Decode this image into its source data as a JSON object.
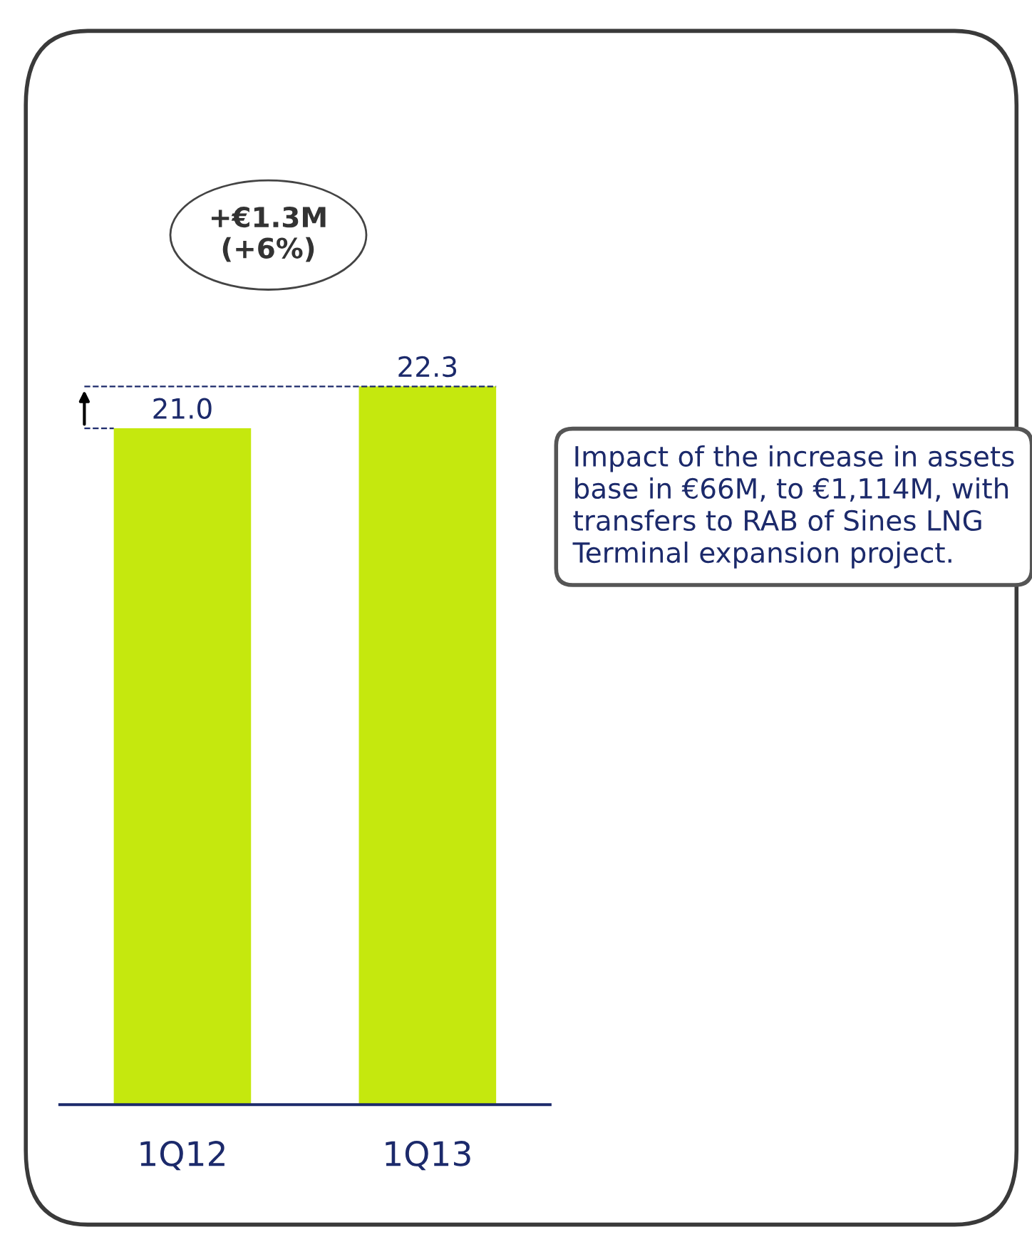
{
  "chart_data": {
    "type": "bar",
    "categories": [
      "1Q12",
      "1Q13"
    ],
    "values": [
      21.0,
      22.3
    ],
    "colors": [
      "#c5e80e",
      "#c5e80e"
    ],
    "value_labels": [
      "21.0",
      "22.3"
    ],
    "grid": false,
    "annotations": [
      "+€1.3M\n(+6%)",
      "Impact of the increase in assets base in €66M, to €1,114M, with transfers to RAB of Sines LNG Terminal expansion project."
    ]
  }
}
